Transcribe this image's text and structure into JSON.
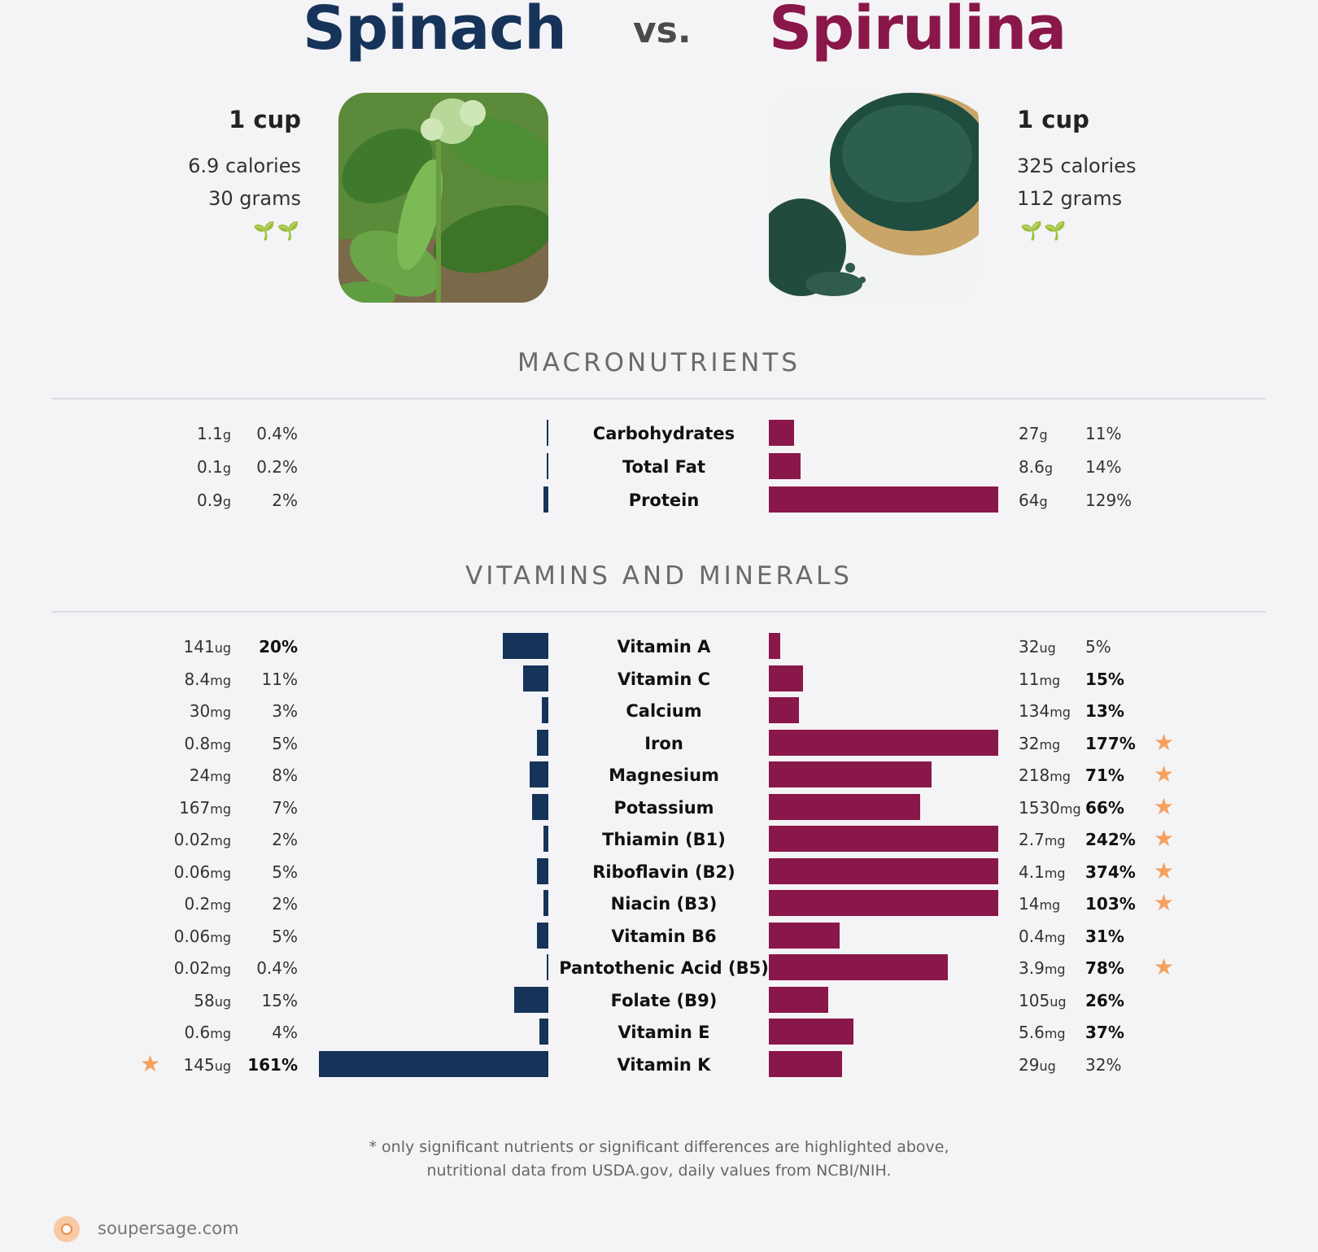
{
  "header": {
    "left_food": "Spinach",
    "vs": "vs.",
    "right_food": "Spirulina"
  },
  "left_info": {
    "serving": "1 cup",
    "calories": "6.9 calories",
    "grams": "30 grams",
    "sprouts": "🌱🌱"
  },
  "right_info": {
    "serving": "1 cup",
    "calories": "325 calories",
    "grams": "112 grams",
    "sprouts": "🌱🌱"
  },
  "colors": {
    "left": "#16345a",
    "right": "#8a1749",
    "star": "#f5a05e"
  },
  "sections": {
    "macros": "MACRONUTRIENTS",
    "vitamins": "VITAMINS AND MINERALS"
  },
  "chart_data": [
    {
      "type": "bar",
      "title": "MACRONUTRIENTS",
      "categories": [
        "Carbohydrates",
        "Total Fat",
        "Protein"
      ],
      "series": [
        {
          "name": "Spinach",
          "amounts": [
            "1.1",
            "0.1",
            "0.9"
          ],
          "units": [
            "g",
            "g",
            "g"
          ],
          "percent_labels": [
            "0.4%",
            "0.2%",
            "2%"
          ],
          "values": [
            0.4,
            0.2,
            2
          ]
        },
        {
          "name": "Spirulina",
          "amounts": [
            "27",
            "8.6",
            "64"
          ],
          "units": [
            "g",
            "g",
            "g"
          ],
          "percent_labels": [
            "11%",
            "14%",
            "129%"
          ],
          "values": [
            11,
            14,
            129
          ]
        }
      ]
    },
    {
      "type": "bar",
      "title": "VITAMINS AND MINERALS",
      "categories": [
        "Vitamin A",
        "Vitamin C",
        "Calcium",
        "Iron",
        "Magnesium",
        "Potassium",
        "Thiamin (B1)",
        "Riboflavin (B2)",
        "Niacin (B3)",
        "Vitamin B6",
        "Pantothenic Acid (B5)",
        "Folate (B9)",
        "Vitamin E",
        "Vitamin K"
      ],
      "series": [
        {
          "name": "Spinach",
          "amounts": [
            "141",
            "8.4",
            "30",
            "0.8",
            "24",
            "167",
            "0.02",
            "0.06",
            "0.2",
            "0.06",
            "0.02",
            "58",
            "0.6",
            "145"
          ],
          "units": [
            "ug",
            "mg",
            "mg",
            "mg",
            "mg",
            "mg",
            "mg",
            "mg",
            "mg",
            "mg",
            "mg",
            "ug",
            "mg",
            "ug"
          ],
          "percent_labels": [
            "20%",
            "11%",
            "3%",
            "5%",
            "8%",
            "7%",
            "2%",
            "5%",
            "2%",
            "5%",
            "0.4%",
            "15%",
            "4%",
            "161%"
          ],
          "values": [
            20,
            11,
            3,
            5,
            8,
            7,
            2,
            5,
            2,
            5,
            0.4,
            15,
            4,
            161
          ],
          "bold": [
            true,
            false,
            false,
            false,
            false,
            false,
            false,
            false,
            false,
            false,
            false,
            false,
            false,
            true
          ],
          "star": [
            false,
            false,
            false,
            false,
            false,
            false,
            false,
            false,
            false,
            false,
            false,
            false,
            false,
            true
          ]
        },
        {
          "name": "Spirulina",
          "amounts": [
            "32",
            "11",
            "134",
            "32",
            "218",
            "1530",
            "2.7",
            "4.1",
            "14",
            "0.4",
            "3.9",
            "105",
            "5.6",
            "29"
          ],
          "units": [
            "ug",
            "mg",
            "mg",
            "mg",
            "mg",
            "mg",
            "mg",
            "mg",
            "mg",
            "mg",
            "mg",
            "ug",
            "mg",
            "ug"
          ],
          "percent_labels": [
            "5%",
            "15%",
            "13%",
            "177%",
            "71%",
            "66%",
            "242%",
            "374%",
            "103%",
            "31%",
            "78%",
            "26%",
            "37%",
            "32%"
          ],
          "values": [
            5,
            15,
            13,
            177,
            71,
            66,
            242,
            374,
            103,
            31,
            78,
            26,
            37,
            32
          ],
          "bold": [
            false,
            true,
            true,
            true,
            true,
            true,
            true,
            true,
            true,
            true,
            true,
            true,
            true,
            false
          ],
          "star": [
            false,
            false,
            false,
            true,
            true,
            true,
            true,
            true,
            true,
            false,
            true,
            false,
            false,
            false
          ]
        }
      ]
    }
  ],
  "footer": {
    "line1": "* only significant nutrients or significant differences are highlighted above,",
    "line2": "nutritional data from USDA.gov, daily values from NCBI/NIH.",
    "brand": "soupersage.com"
  }
}
